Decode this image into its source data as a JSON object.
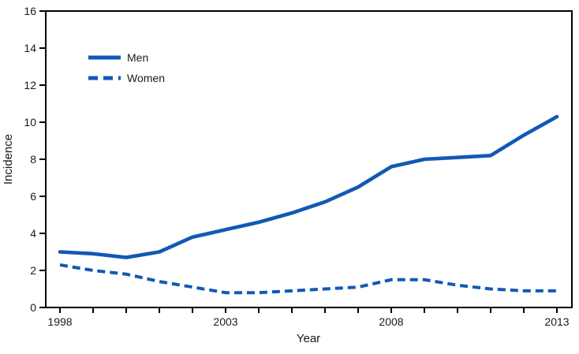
{
  "chart_data": {
    "type": "line",
    "title": "",
    "xlabel": "Year",
    "ylabel": "Incidence",
    "x": [
      1998,
      1999,
      2000,
      2001,
      2002,
      2003,
      2004,
      2005,
      2006,
      2007,
      2008,
      2009,
      2010,
      2011,
      2012,
      2013
    ],
    "series": [
      {
        "name": "Men",
        "line_style": "solid",
        "values": [
          3.0,
          2.9,
          2.7,
          3.0,
          3.8,
          4.2,
          4.6,
          5.1,
          5.7,
          6.5,
          7.6,
          8.0,
          8.1,
          8.2,
          9.3,
          10.3
        ]
      },
      {
        "name": "Women",
        "line_style": "dashed",
        "values": [
          2.3,
          2.0,
          1.8,
          1.4,
          1.1,
          0.8,
          0.8,
          0.9,
          1.0,
          1.1,
          1.5,
          1.5,
          1.2,
          1.0,
          0.9,
          0.9
        ]
      }
    ],
    "ylim": [
      0,
      16
    ],
    "yticks": [
      0,
      2,
      4,
      6,
      8,
      10,
      12,
      14,
      16
    ],
    "xtick_labels": [
      "1998",
      "2003",
      "2008",
      "2013"
    ],
    "grid": false,
    "legend_position": "upper-left-inside",
    "line_color": "#1159b4",
    "axis_color": "#000000",
    "text_color": "#1a1a1a"
  }
}
